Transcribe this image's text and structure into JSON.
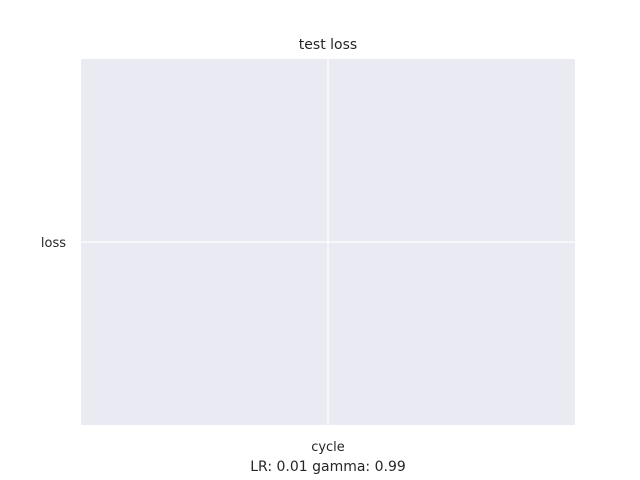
{
  "chart_data": {
    "type": "line",
    "title": "test loss",
    "xlabel": "cycle",
    "ylabel": "",
    "x_categories": [
      "cycle"
    ],
    "y_categories": [
      "loss"
    ],
    "series": [],
    "grid": true,
    "legend": "none",
    "colors": {
      "plot_background": "#eaeaf2",
      "grid": "#ffffff",
      "text": "#262626"
    }
  },
  "footer_text": "LR: 0.01 gamma: 0.99"
}
